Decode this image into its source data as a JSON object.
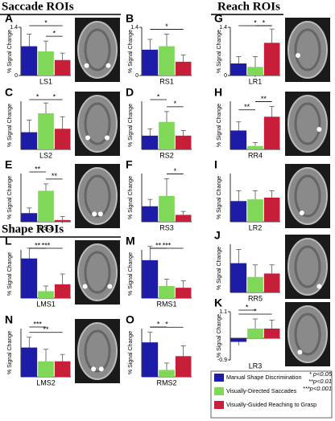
{
  "headers": [
    "Saccade ROIs",
    "Shape ROIs",
    "Reach ROIs"
  ],
  "legend": [
    {
      "name": "Manual Shape Discrimination",
      "color": "#1c1ca8"
    },
    {
      "name": "Visually-Directed Saccades",
      "color": "#7fd858"
    },
    {
      "name": "Visually-Guided Reaching to Grasp",
      "color": "#c71f3a"
    }
  ],
  "notes": [
    "* p<0.05",
    "**p<0.01",
    "***p<0.001"
  ],
  "chart_data": [
    {
      "type": "bar",
      "panel": "A",
      "xlabel": "LS1",
      "ylabel": "% Signal Change",
      "values": [
        0.85,
        0.7,
        0.45
      ],
      "errors": [
        0.35,
        0.3,
        0.2
      ],
      "ylim": [
        0,
        1.4
      ],
      "yticks": [
        0,
        1.4
      ],
      "annotations": [
        {
          "text": "*",
          "from": 0,
          "to": 2
        },
        {
          "text": "*",
          "from": 1,
          "to": 2
        }
      ]
    },
    {
      "type": "bar",
      "panel": "B",
      "xlabel": "RS1",
      "ylabel": "% Signal Change",
      "values": [
        0.75,
        0.85,
        0.4
      ],
      "errors": [
        0.3,
        0.35,
        0.2
      ],
      "ylim": [
        0,
        1.4
      ],
      "yticks": [
        0,
        1.4
      ],
      "annotations": [
        {
          "text": "*",
          "from": 0,
          "to": 2
        }
      ]
    },
    {
      "type": "bar",
      "panel": "C",
      "xlabel": "LS2",
      "ylabel": "% Signal Change",
      "values": [
        0.5,
        1.05,
        0.6
      ],
      "errors": [
        0.35,
        0.3,
        0.35
      ],
      "ylim": [
        0,
        1.4
      ],
      "annotations": [
        {
          "text": "*",
          "from": 0,
          "to": 1
        },
        {
          "text": "*",
          "from": 1,
          "to": 2
        }
      ]
    },
    {
      "type": "bar",
      "panel": "D",
      "xlabel": "RS2",
      "ylabel": "% Signal Change",
      "values": [
        0.4,
        0.8,
        0.4
      ],
      "errors": [
        0.2,
        0.3,
        0.15
      ],
      "ylim": [
        0,
        1.4
      ],
      "annotations": [
        {
          "text": "*",
          "from": 0,
          "to": 1
        },
        {
          "text": "*",
          "from": 1,
          "to": 2
        }
      ]
    },
    {
      "type": "bar",
      "panel": "E",
      "xlabel": "LS3",
      "ylabel": "% Signal Change",
      "values": [
        0.25,
        0.9,
        0.05
      ],
      "errors": [
        0.15,
        0.2,
        0.1
      ],
      "ylim": [
        0,
        1.4
      ],
      "annotations": [
        {
          "text": "**",
          "from": 0,
          "to": 1
        },
        {
          "text": "**",
          "from": 1,
          "to": 2
        }
      ]
    },
    {
      "type": "bar",
      "panel": "F",
      "xlabel": "RS3",
      "ylabel": "% Signal Change",
      "values": [
        0.45,
        0.75,
        0.2
      ],
      "errors": [
        0.2,
        0.5,
        0.1
      ],
      "ylim": [
        0,
        1.4
      ],
      "annotations": [
        {
          "text": "*",
          "from": 1,
          "to": 2
        }
      ]
    },
    {
      "type": "bar",
      "panel": "L",
      "xlabel": "LMS1",
      "ylabel": "% Signal Change",
      "values": [
        1.15,
        0.2,
        0.4
      ],
      "errors": [
        0.3,
        0.15,
        0.3
      ],
      "ylim": [
        0,
        1.4
      ],
      "annotations": [
        {
          "text": "**",
          "from": 0,
          "to": 1
        },
        {
          "text": "***",
          "from": 0,
          "to": 2
        }
      ]
    },
    {
      "type": "bar",
      "panel": "M",
      "xlabel": "RMS1",
      "ylabel": "% Signal Change",
      "values": [
        1.1,
        0.35,
        0.3
      ],
      "errors": [
        0.4,
        0.2,
        0.2
      ],
      "ylim": [
        0,
        1.4
      ],
      "annotations": [
        {
          "text": "**",
          "from": 0,
          "to": 1
        },
        {
          "text": "***",
          "from": 0,
          "to": 2
        }
      ]
    },
    {
      "type": "bar",
      "panel": "N",
      "xlabel": "LMS2",
      "ylabel": "% Signal Change",
      "values": [
        0.85,
        0.45,
        0.45
      ],
      "errors": [
        0.3,
        0.35,
        0.2
      ],
      "ylim": [
        0,
        1.4
      ],
      "annotations": [
        {
          "text": "***",
          "from": 0,
          "to": 1
        },
        {
          "text": "**",
          "from": 0,
          "to": 2
        }
      ]
    },
    {
      "type": "bar",
      "panel": "O",
      "xlabel": "RMS2",
      "ylabel": "% Signal Change",
      "values": [
        1.0,
        0.2,
        0.6
      ],
      "errors": [
        0.3,
        0.2,
        0.3
      ],
      "ylim": [
        0,
        1.4
      ],
      "annotations": [
        {
          "text": "*",
          "from": 0,
          "to": 1
        },
        {
          "text": "*",
          "from": 0,
          "to": 2
        }
      ]
    },
    {
      "type": "bar",
      "panel": "G",
      "xlabel": "LR1",
      "ylabel": "% Signal Change",
      "values": [
        0.35,
        0.25,
        0.95
      ],
      "errors": [
        0.2,
        0.3,
        0.4
      ],
      "ylim": [
        0,
        1.4
      ],
      "yticks": [
        0,
        1.4
      ],
      "annotations": [
        {
          "text": "*",
          "from": 1,
          "to": 2
        },
        {
          "text": "*",
          "from": 0,
          "to": 2
        }
      ]
    },
    {
      "type": "bar",
      "panel": "H",
      "xlabel": "RR4",
      "ylabel": "% Signal Change",
      "values": [
        0.55,
        0.1,
        0.95
      ],
      "errors": [
        0.25,
        0.1,
        0.3
      ],
      "ylim": [
        0,
        1.4
      ],
      "annotations": [
        {
          "text": "**",
          "from": 0,
          "to": 1
        },
        {
          "text": "**",
          "from": 1,
          "to": 2
        }
      ]
    },
    {
      "type": "bar",
      "panel": "I",
      "xlabel": "LR2",
      "ylabel": "% Signal Change",
      "values": [
        0.6,
        0.65,
        0.7
      ],
      "errors": [
        0.3,
        0.25,
        0.2
      ],
      "ylim": [
        0,
        1.4
      ],
      "annotations": []
    },
    {
      "type": "bar",
      "panel": "J",
      "xlabel": "RR5",
      "ylabel": "% Signal Change",
      "values": [
        0.85,
        0.45,
        0.55
      ],
      "errors": [
        0.4,
        0.35,
        0.25
      ],
      "ylim": [
        0,
        1.4
      ],
      "annotations": []
    },
    {
      "type": "bar",
      "panel": "K",
      "xlabel": "LR3",
      "ylabel": "% Signal Change",
      "values": [
        -0.15,
        0.4,
        0.4
      ],
      "errors": [
        0.15,
        0.4,
        0.35
      ],
      "ylim": [
        -0.9,
        1.1
      ],
      "yticks": [
        -0.9,
        1.1
      ],
      "annotations": [
        {
          "text": "*",
          "from": 0,
          "to": 1
        },
        {
          "text": "*",
          "from": 0,
          "to": 2
        }
      ]
    }
  ]
}
